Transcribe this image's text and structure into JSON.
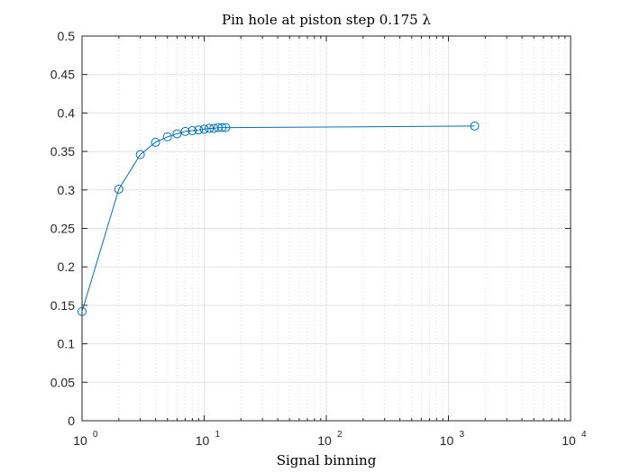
{
  "chart_data": {
    "type": "line",
    "title": "Pin hole at piston step 0.175 λ",
    "xlabel": "Signal binning",
    "ylabel": "",
    "x_scale": "log",
    "xlim": [
      1,
      10000
    ],
    "ylim": [
      0,
      0.5
    ],
    "grid": true,
    "x_ticks": [
      {
        "value": 1,
        "label": "10",
        "exp": "0"
      },
      {
        "value": 10,
        "label": "10",
        "exp": "1"
      },
      {
        "value": 100,
        "label": "10",
        "exp": "2"
      },
      {
        "value": 1000,
        "label": "10",
        "exp": "3"
      },
      {
        "value": 10000,
        "label": "10",
        "exp": "4"
      }
    ],
    "y_ticks": [
      {
        "value": 0,
        "label": "0"
      },
      {
        "value": 0.05,
        "label": "0.05"
      },
      {
        "value": 0.1,
        "label": "0.1"
      },
      {
        "value": 0.15,
        "label": "0.15"
      },
      {
        "value": 0.2,
        "label": "0.2"
      },
      {
        "value": 0.25,
        "label": "0.25"
      },
      {
        "value": 0.3,
        "label": "0.3"
      },
      {
        "value": 0.35,
        "label": "0.35"
      },
      {
        "value": 0.4,
        "label": "0.4"
      },
      {
        "value": 0.45,
        "label": "0.45"
      },
      {
        "value": 0.5,
        "label": "0.5"
      }
    ],
    "series": [
      {
        "color": "#0072BD",
        "marker": "circle",
        "x": [
          1,
          2,
          3,
          4,
          5,
          6,
          7,
          8,
          9,
          10,
          11,
          12,
          13,
          14,
          15,
          1638
        ],
        "y": [
          0.142,
          0.301,
          0.346,
          0.362,
          0.369,
          0.373,
          0.376,
          0.377,
          0.378,
          0.379,
          0.38,
          0.38,
          0.381,
          0.381,
          0.381,
          0.383
        ]
      }
    ]
  }
}
